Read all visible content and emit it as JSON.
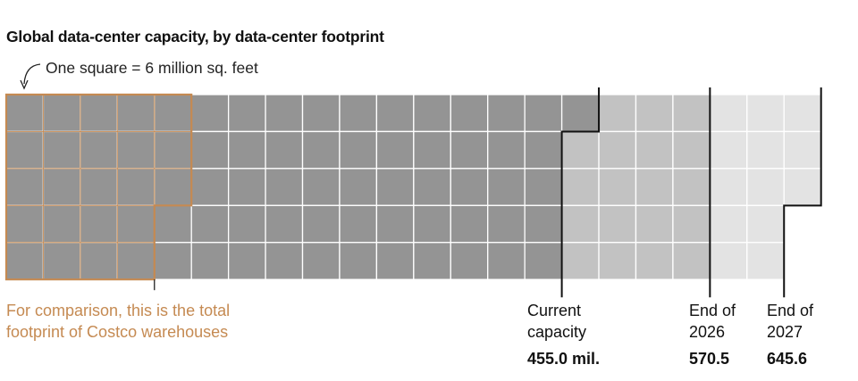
{
  "chart_data": {
    "type": "waffle",
    "title": "Global data-center capacity, by data-center footprint",
    "unit_note": "One square = 6 million sq. feet",
    "square_value_million_sqft": 6,
    "rows": 5,
    "stages": [
      {
        "label_line1": "Current",
        "label_line2": "capacity",
        "value_label": "455.0 mil.",
        "value": 455.0,
        "color": "#949494"
      },
      {
        "label_line1": "End of",
        "label_line2": "2026",
        "value_label": "570.5",
        "value": 570.5,
        "color": "#c2c2c2"
      },
      {
        "label_line1": "End of",
        "label_line2": "2027",
        "value_label": "645.6",
        "value": 645.6,
        "color": "#e3e3e3"
      }
    ],
    "comparison": {
      "label": "For comparison, this is the total footprint of Costco warehouses",
      "squares": 23,
      "color": "#c58a52"
    }
  },
  "labels": {
    "comparison_line1": "For comparison, this is the total",
    "comparison_line2": "footprint of Costco warehouses"
  }
}
